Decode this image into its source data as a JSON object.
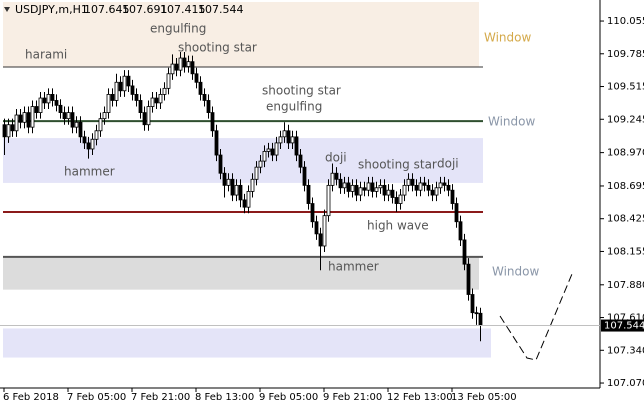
{
  "chart_data": {
    "type": "candlestick",
    "title": "USDJPY,m,H1",
    "header_values": [
      107.645,
      107.691,
      107.415,
      107.544
    ],
    "ylim": [
      107.029,
      110.212
    ],
    "yticks": [
      110.055,
      109.785,
      109.515,
      109.245,
      {
        "value": 108.97,
        "label": "108.970"
      },
      108.695,
      108.425,
      108.155,
      {
        "value": 107.88,
        "label": "107.880"
      },
      {
        "value": 107.61,
        "label": "107.610"
      },
      {
        "value": 107.34,
        "label": "107.340"
      },
      {
        "value": 107.07,
        "label": "107.070"
      }
    ],
    "categories": [
      "6 Feb 2018",
      null,
      null,
      null,
      null,
      null,
      null,
      null,
      null,
      null,
      null,
      null,
      null,
      null,
      null,
      null,
      "7 Feb 05:00",
      null,
      null,
      null,
      null,
      null,
      null,
      null,
      null,
      null,
      null,
      null,
      null,
      null,
      null,
      null,
      "7 Feb 21:00",
      null,
      null,
      null,
      null,
      null,
      null,
      null,
      null,
      null,
      null,
      null,
      null,
      null,
      null,
      null,
      "8 Feb 13:00",
      null,
      null,
      null,
      null,
      null,
      null,
      null,
      null,
      null,
      null,
      null,
      null,
      null,
      null,
      null,
      "9 Feb 05:00",
      null,
      null,
      null,
      null,
      null,
      null,
      null,
      null,
      null,
      null,
      null,
      null,
      null,
      null,
      null,
      "9 Feb 21:00",
      null,
      null,
      null,
      null,
      null,
      null,
      null,
      null,
      null,
      null,
      null,
      null,
      null,
      null,
      null,
      "12 Feb 13:00",
      null,
      null,
      null,
      null,
      null,
      null,
      null,
      null,
      null,
      null,
      null,
      null,
      null,
      null,
      null,
      "13 Feb 05:00",
      null,
      null,
      null,
      null,
      null,
      null,
      null
    ],
    "open": [
      109.2,
      109.1,
      109.2,
      109.15,
      109.28,
      109.22,
      109.3,
      109.18,
      109.35,
      109.3,
      109.42,
      109.38,
      109.45,
      109.4,
      109.36,
      109.3,
      109.25,
      109.3,
      109.18,
      109.22,
      109.1,
      109.05,
      109.0,
      109.08,
      109.15,
      109.25,
      109.3,
      109.45,
      109.4,
      109.55,
      109.48,
      109.6,
      109.52,
      109.45,
      109.4,
      109.3,
      109.2,
      109.35,
      109.42,
      109.38,
      109.45,
      109.5,
      109.62,
      109.7,
      109.65,
      109.75,
      109.68,
      109.72,
      109.62,
      109.55,
      109.45,
      109.4,
      109.3,
      109.15,
      108.95,
      108.8,
      108.7,
      108.75,
      108.62,
      108.7,
      108.58,
      108.52,
      108.65,
      108.75,
      108.85,
      108.9,
      108.98,
      109.0,
      108.95,
      109.05,
      109.1,
      109.15,
      109.05,
      109.1,
      108.95,
      108.85,
      108.7,
      108.55,
      108.4,
      108.3,
      108.2,
      108.45,
      108.7,
      108.8,
      108.75,
      108.68,
      108.72,
      108.65,
      108.7,
      108.62,
      108.68,
      108.66,
      108.72,
      108.65,
      108.68,
      108.7,
      108.62,
      108.66,
      108.6,
      108.55,
      108.62,
      108.7,
      108.75,
      108.7,
      108.66,
      108.72,
      108.7,
      108.66,
      108.62,
      108.68,
      108.72,
      108.7,
      108.66,
      108.55,
      108.4,
      108.25,
      108.05,
      107.8,
      107.65,
      107.645
    ],
    "high": [
      109.25,
      109.25,
      109.25,
      109.33,
      109.33,
      109.35,
      109.35,
      109.4,
      109.4,
      109.47,
      109.47,
      109.5,
      109.5,
      109.45,
      109.41,
      109.35,
      109.35,
      109.35,
      109.27,
      109.27,
      109.15,
      109.1,
      109.13,
      109.2,
      109.3,
      109.35,
      109.5,
      109.5,
      109.62,
      109.6,
      109.65,
      109.65,
      109.57,
      109.5,
      109.45,
      109.35,
      109.4,
      109.47,
      109.47,
      109.5,
      109.55,
      109.67,
      109.78,
      109.75,
      109.8,
      109.8,
      109.77,
      109.77,
      109.67,
      109.6,
      109.5,
      109.45,
      109.35,
      109.2,
      109.0,
      108.85,
      108.8,
      108.8,
      108.75,
      108.75,
      108.63,
      108.7,
      108.8,
      108.9,
      108.95,
      109.03,
      109.05,
      109.05,
      109.1,
      109.15,
      109.22,
      109.2,
      109.15,
      109.15,
      109.0,
      108.9,
      108.75,
      108.6,
      108.45,
      108.35,
      108.5,
      108.75,
      108.88,
      108.85,
      108.8,
      108.77,
      108.77,
      108.75,
      108.75,
      108.73,
      108.73,
      108.77,
      108.77,
      108.73,
      108.75,
      108.75,
      108.71,
      108.71,
      108.65,
      108.67,
      108.75,
      108.8,
      108.8,
      108.75,
      108.77,
      108.77,
      108.75,
      108.71,
      108.73,
      108.77,
      108.77,
      108.75,
      108.71,
      108.6,
      108.45,
      108.3,
      108.1,
      107.85,
      107.7,
      107.691
    ],
    "low": [
      108.95,
      109.05,
      109.1,
      109.1,
      109.17,
      109.17,
      109.13,
      109.13,
      109.25,
      109.25,
      109.33,
      109.33,
      109.35,
      109.31,
      109.25,
      109.2,
      109.2,
      109.13,
      109.13,
      109.05,
      109.0,
      108.92,
      108.95,
      109.03,
      109.1,
      109.2,
      109.25,
      109.35,
      109.35,
      109.43,
      109.43,
      109.47,
      109.4,
      109.35,
      109.25,
      109.15,
      109.15,
      109.3,
      109.33,
      109.33,
      109.4,
      109.45,
      109.57,
      109.6,
      109.6,
      109.63,
      109.63,
      109.57,
      109.5,
      109.4,
      109.35,
      109.25,
      109.1,
      108.9,
      108.75,
      108.6,
      108.65,
      108.57,
      108.57,
      108.52,
      108.47,
      108.47,
      108.6,
      108.7,
      108.8,
      108.85,
      108.93,
      108.9,
      108.9,
      109.0,
      109.05,
      109.0,
      109.0,
      108.9,
      108.8,
      108.65,
      108.5,
      108.35,
      108.25,
      108.0,
      108.15,
      108.4,
      108.65,
      108.7,
      108.63,
      108.63,
      108.6,
      108.6,
      108.57,
      108.57,
      108.61,
      108.61,
      108.6,
      108.6,
      108.63,
      108.57,
      108.57,
      108.55,
      108.48,
      108.5,
      108.57,
      108.65,
      108.65,
      108.61,
      108.61,
      108.65,
      108.61,
      108.57,
      108.57,
      108.63,
      108.65,
      108.61,
      108.5,
      108.35,
      108.2,
      108.0,
      107.75,
      107.6,
      107.55,
      107.415
    ],
    "close": [
      109.1,
      109.2,
      109.15,
      109.28,
      109.22,
      109.3,
      109.18,
      109.35,
      109.3,
      109.42,
      109.38,
      109.45,
      109.4,
      109.36,
      109.3,
      109.25,
      109.3,
      109.18,
      109.22,
      109.1,
      109.05,
      109.0,
      109.08,
      109.15,
      109.25,
      109.3,
      109.45,
      109.4,
      109.55,
      109.48,
      109.6,
      109.52,
      109.45,
      109.4,
      109.3,
      109.2,
      109.35,
      109.42,
      109.38,
      109.45,
      109.5,
      109.62,
      109.7,
      109.65,
      109.75,
      109.68,
      109.72,
      109.62,
      109.55,
      109.45,
      109.4,
      109.3,
      109.15,
      108.95,
      108.8,
      108.7,
      108.75,
      108.62,
      108.7,
      108.58,
      108.52,
      108.65,
      108.75,
      108.85,
      108.9,
      108.98,
      109.0,
      108.95,
      109.05,
      109.1,
      109.15,
      109.05,
      109.1,
      108.95,
      108.85,
      108.7,
      108.55,
      108.4,
      108.3,
      108.2,
      108.45,
      108.7,
      108.8,
      108.75,
      108.68,
      108.72,
      108.65,
      108.7,
      108.62,
      108.68,
      108.66,
      108.72,
      108.65,
      108.68,
      108.7,
      108.62,
      108.66,
      108.6,
      108.55,
      108.62,
      108.7,
      108.75,
      108.7,
      108.66,
      108.72,
      108.7,
      108.66,
      108.62,
      108.68,
      108.72,
      108.7,
      108.66,
      108.55,
      108.4,
      108.25,
      108.05,
      107.8,
      107.65,
      107.645,
      107.544
    ],
    "zones": [
      {
        "from": 110.212,
        "to": 109.676,
        "color": "#f8eee4"
      },
      {
        "from": 109.09,
        "to": 108.72,
        "color": "#e4e4f8"
      },
      {
        "from": 108.11,
        "to": 107.84,
        "color": "#dcdcdc"
      },
      {
        "from": 107.52,
        "to": 107.28,
        "color": "#e4e4f8"
      }
    ],
    "levels": [
      {
        "price": 109.676,
        "color": "#333333"
      },
      {
        "price": 109.23,
        "color": "#2f4f2f"
      },
      {
        "price": 108.48,
        "color": "#8b1a1a"
      },
      {
        "price": 108.11,
        "color": "#555555"
      }
    ],
    "windows": [
      {
        "text": "Window",
        "color": "#d4a94a"
      },
      {
        "text": "Window",
        "color": "#8a96a8"
      },
      {
        "text": "Window",
        "color": "#8a96a8"
      }
    ],
    "annotations": [
      "harami",
      "engulfing",
      "shooting star",
      "shooting star",
      "engulfing",
      "hammer",
      "doji",
      "shooting star",
      "doji",
      "high wave",
      "hammer"
    ]
  }
}
